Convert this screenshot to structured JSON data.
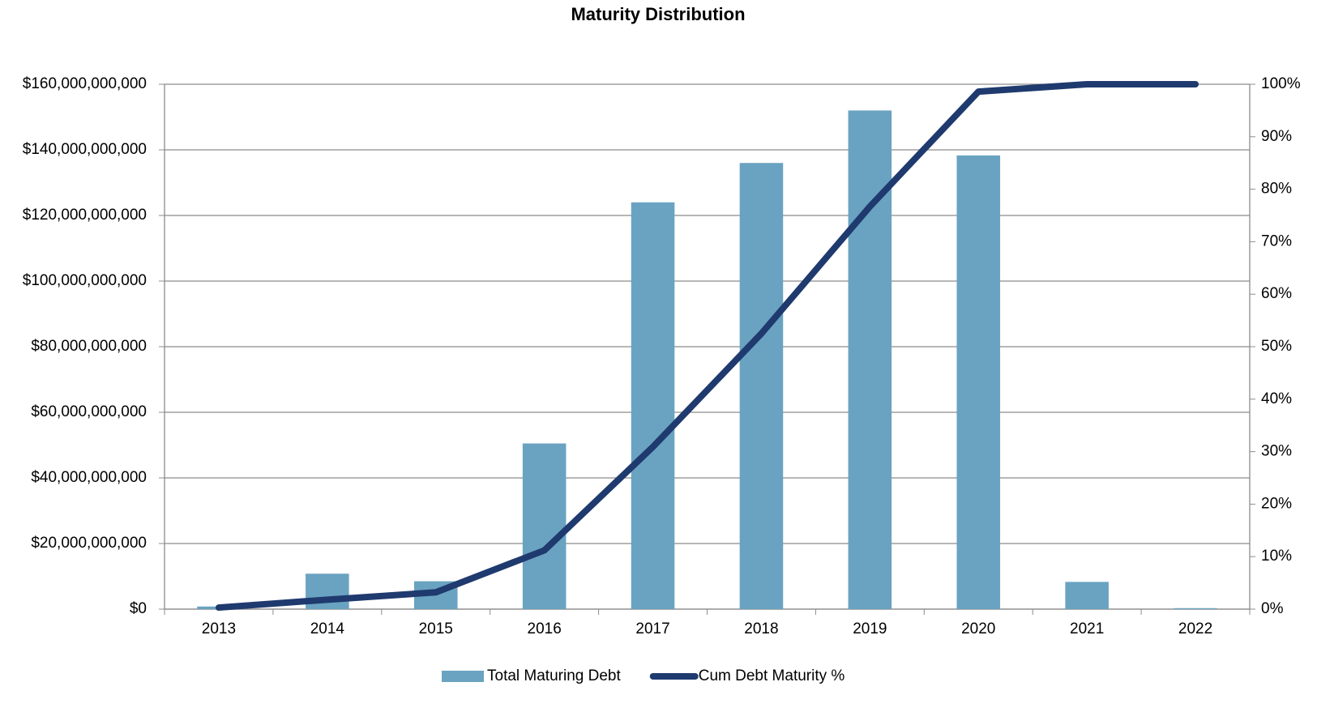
{
  "chart_data": {
    "type": "bar_line",
    "title": "Maturity Distribution",
    "categories": [
      "2013",
      "2014",
      "2015",
      "2016",
      "2017",
      "2018",
      "2019",
      "2020",
      "2021",
      "2022"
    ],
    "series": [
      {
        "name": "Total Maturing Debt",
        "type": "bar",
        "color": "#6aa3c1",
        "values": [
          800000000,
          10800000000,
          8500000000,
          50500000000,
          124000000000,
          136000000000,
          152000000000,
          138300000000,
          8300000000,
          300000000
        ]
      },
      {
        "name": "Cum Debt Maturity %",
        "type": "line",
        "axis": "y2",
        "color": "#1f3a6e",
        "values": [
          0.3,
          1.8,
          3.2,
          11.2,
          30.9,
          52.5,
          76.7,
          98.6,
          100,
          100
        ]
      }
    ],
    "ylim": [
      0,
      160000000000
    ],
    "yticks": [
      {
        "value": 0,
        "label": "$0"
      },
      {
        "value": 20000000000,
        "label": "$20,000,000,000"
      },
      {
        "value": 40000000000,
        "label": "$40,000,000,000"
      },
      {
        "value": 60000000000,
        "label": "$60,000,000,000"
      },
      {
        "value": 80000000000,
        "label": "$80,000,000,000"
      },
      {
        "value": 100000000000,
        "label": "$100,000,000,000"
      },
      {
        "value": 120000000000,
        "label": "$120,000,000,000"
      },
      {
        "value": 140000000000,
        "label": "$140,000,000,000"
      },
      {
        "value": 160000000000,
        "label": "$160,000,000,000"
      }
    ],
    "y2lim": [
      0,
      100
    ],
    "y2ticks": [
      {
        "value": 0,
        "label": "0%"
      },
      {
        "value": 10,
        "label": "10%"
      },
      {
        "value": 20,
        "label": "20%"
      },
      {
        "value": 30,
        "label": "30%"
      },
      {
        "value": 40,
        "label": "40%"
      },
      {
        "value": 50,
        "label": "50%"
      },
      {
        "value": 60,
        "label": "60%"
      },
      {
        "value": 70,
        "label": "70%"
      },
      {
        "value": 80,
        "label": "80%"
      },
      {
        "value": 90,
        "label": "90%"
      },
      {
        "value": 100,
        "label": "100%"
      }
    ],
    "grid": true,
    "legend": "bottom"
  }
}
